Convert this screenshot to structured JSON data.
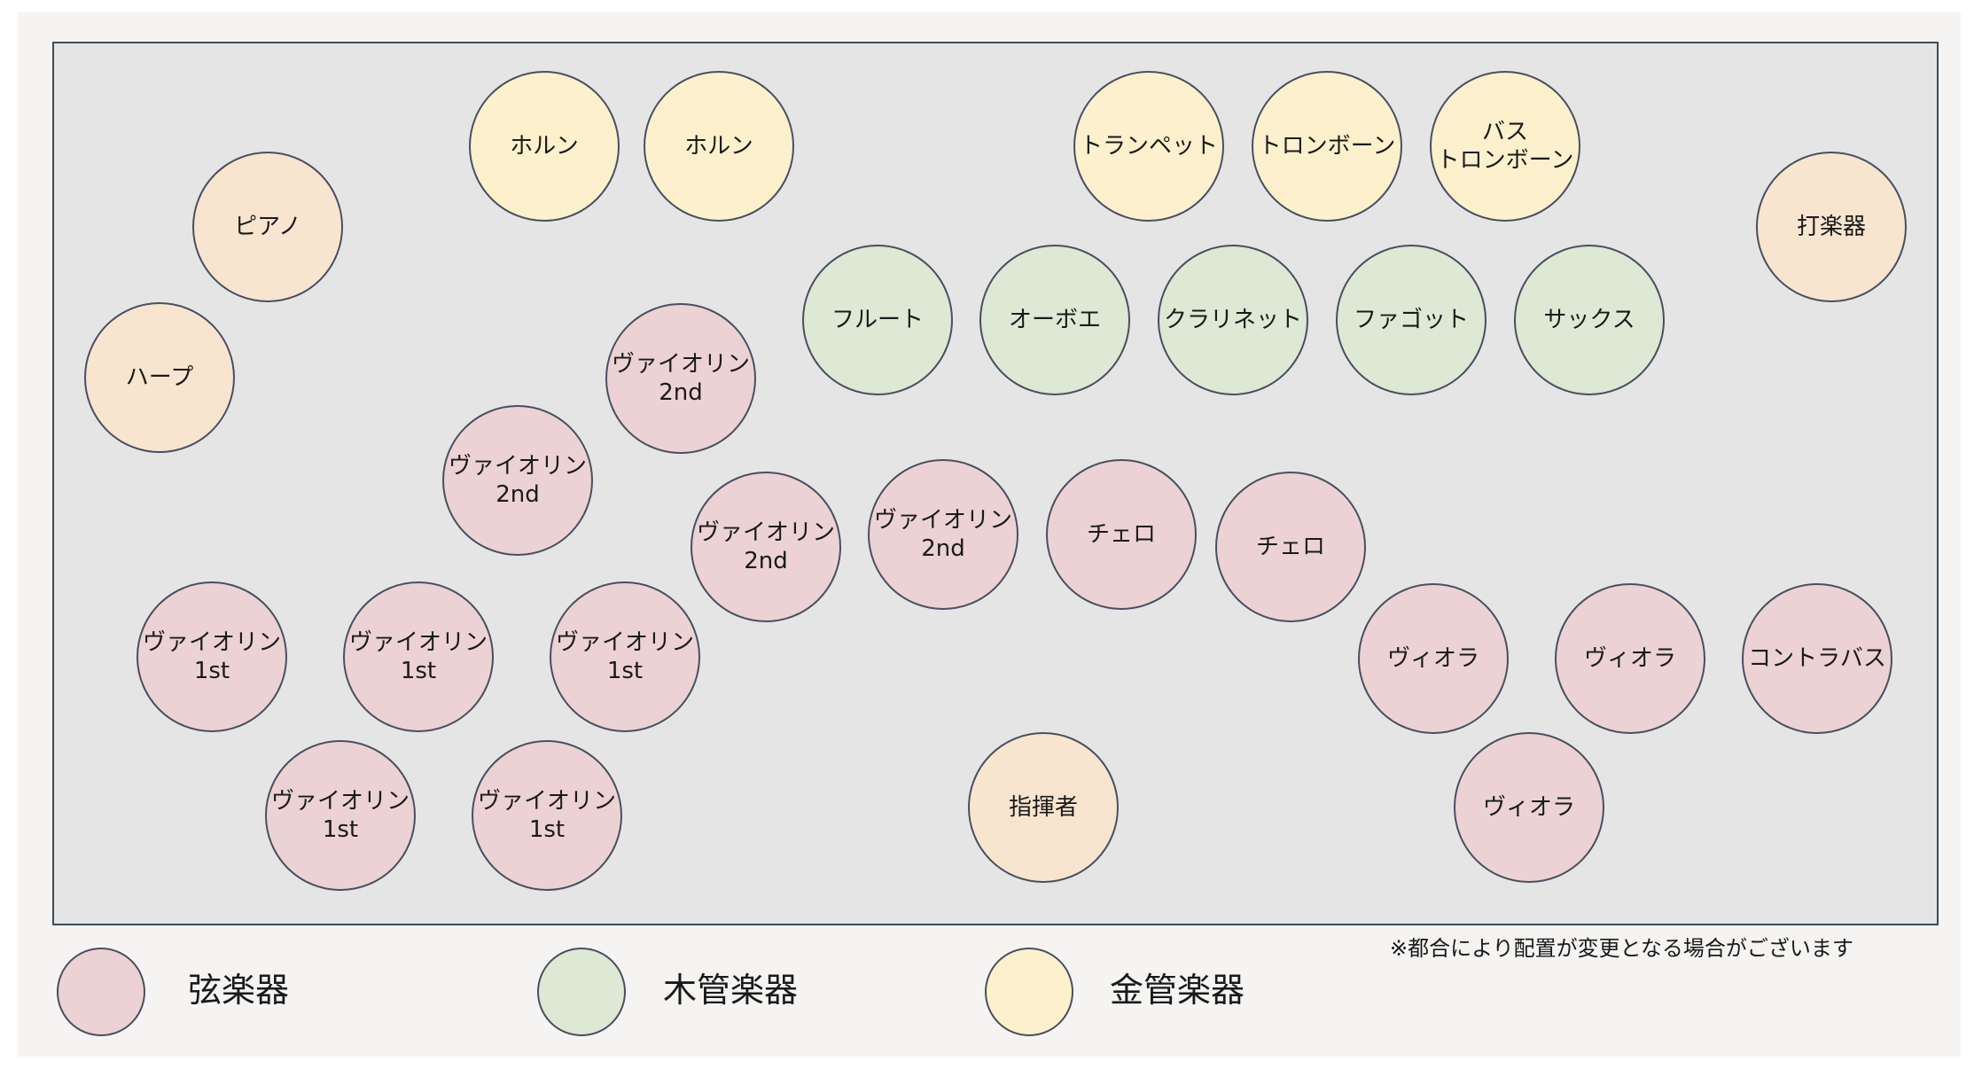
{
  "colors": {
    "strings": "#ecd2d4",
    "woodwinds": "#dde9d5",
    "brass": "#fcf1cc",
    "other": "#f8e5d0",
    "stage": "#e5e5e6",
    "border": "#4a4f60"
  },
  "seats": [
    {
      "label": "ホルン",
      "group": "brass"
    },
    {
      "label": "ホルン",
      "group": "brass"
    },
    {
      "label": "トランペット",
      "group": "brass"
    },
    {
      "label": "トロンボーン",
      "group": "brass"
    },
    {
      "label": "バス\nトロンボーン",
      "group": "brass"
    },
    {
      "label": "ピアノ",
      "group": "other"
    },
    {
      "label": "ハープ",
      "group": "other"
    },
    {
      "label": "打楽器",
      "group": "other"
    },
    {
      "label": "フルート",
      "group": "woodwinds"
    },
    {
      "label": "オーボエ",
      "group": "woodwinds"
    },
    {
      "label": "クラリネット",
      "group": "woodwinds"
    },
    {
      "label": "ファゴット",
      "group": "woodwinds"
    },
    {
      "label": "サックス",
      "group": "woodwinds"
    },
    {
      "label": "ヴァイオリン\n2nd",
      "group": "strings"
    },
    {
      "label": "ヴァイオリン\n2nd",
      "group": "strings"
    },
    {
      "label": "ヴァイオリン\n2nd",
      "group": "strings"
    },
    {
      "label": "ヴァイオリン\n2nd",
      "group": "strings"
    },
    {
      "label": "チェロ",
      "group": "strings"
    },
    {
      "label": "チェロ",
      "group": "strings"
    },
    {
      "label": "ヴァイオリン\n1st",
      "group": "strings"
    },
    {
      "label": "ヴァイオリン\n1st",
      "group": "strings"
    },
    {
      "label": "ヴァイオリン\n1st",
      "group": "strings"
    },
    {
      "label": "ヴァイオリン\n1st",
      "group": "strings"
    },
    {
      "label": "ヴァイオリン\n1st",
      "group": "strings"
    },
    {
      "label": "ヴィオラ",
      "group": "strings"
    },
    {
      "label": "ヴィオラ",
      "group": "strings"
    },
    {
      "label": "コントラバス",
      "group": "strings"
    },
    {
      "label": "ヴィオラ",
      "group": "strings"
    },
    {
      "label": "指揮者",
      "group": "other"
    }
  ],
  "legend": [
    {
      "label": "弦楽器",
      "group": "strings"
    },
    {
      "label": "木管楽器",
      "group": "woodwinds"
    },
    {
      "label": "金管楽器",
      "group": "brass"
    }
  ],
  "note": "※都合により配置が変更となる場合がございます"
}
